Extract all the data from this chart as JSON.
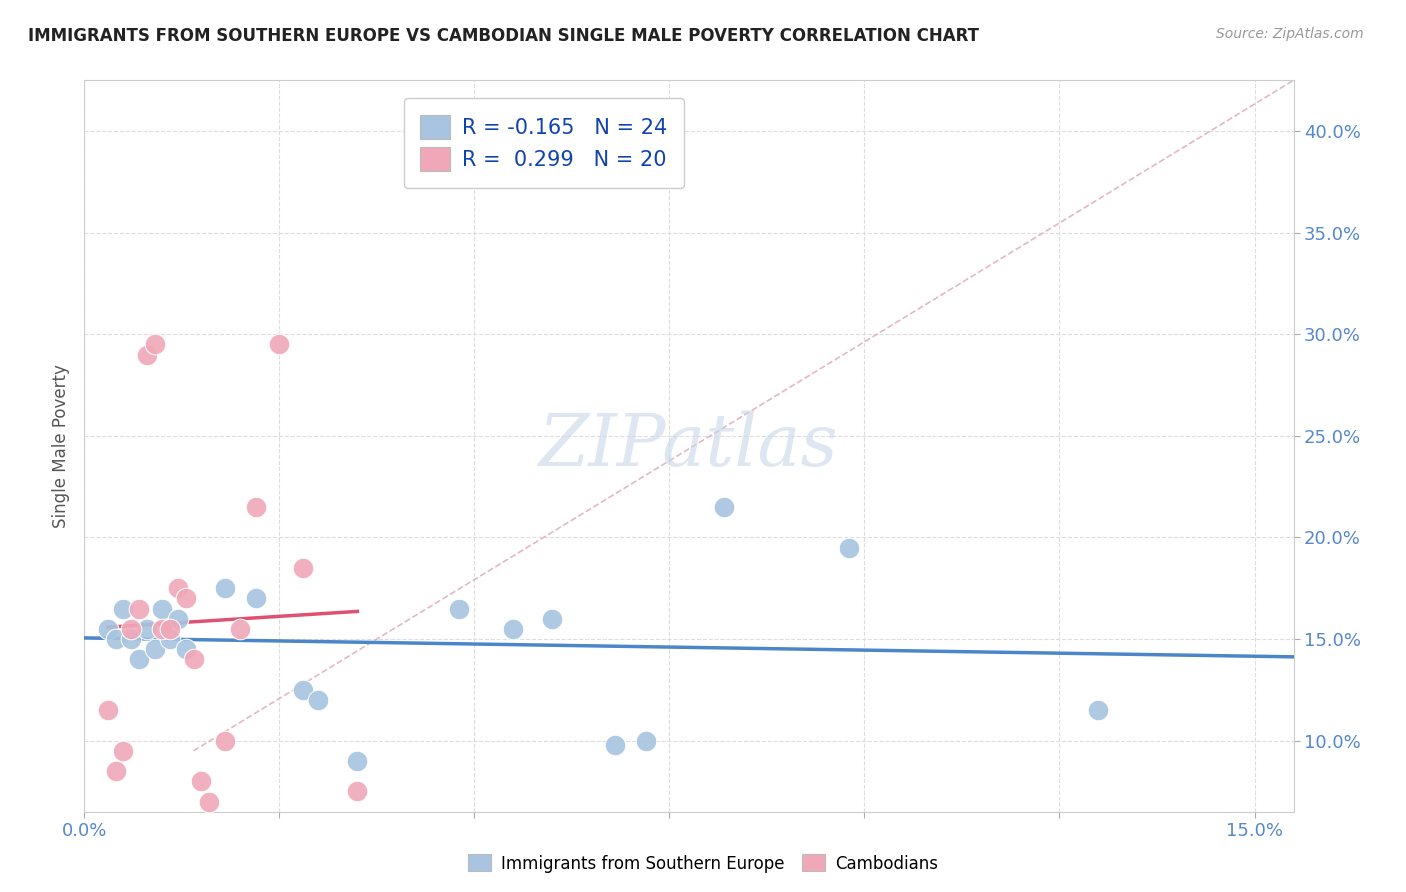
{
  "title": "IMMIGRANTS FROM SOUTHERN EUROPE VS CAMBODIAN SINGLE MALE POVERTY CORRELATION CHART",
  "source": "Source: ZipAtlas.com",
  "ylabel": "Single Male Poverty",
  "xlim": [
    0.0,
    0.155
  ],
  "ylim": [
    0.065,
    0.425
  ],
  "xticks": [
    0.0,
    0.025,
    0.05,
    0.075,
    0.1,
    0.125,
    0.15
  ],
  "xtick_labels": [
    "0.0%",
    "",
    "",
    "",
    "",
    "",
    "15.0%"
  ],
  "ytick_labels": [
    "10.0%",
    "15.0%",
    "20.0%",
    "25.0%",
    "30.0%",
    "35.0%",
    "40.0%"
  ],
  "yticks": [
    0.1,
    0.15,
    0.2,
    0.25,
    0.3,
    0.35,
    0.4
  ],
  "legend1_label": "R = -0.165   N = 24",
  "legend2_label": "R =  0.299   N = 20",
  "blue_color": "#A8C4E0",
  "pink_color": "#F0A8B8",
  "blue_line_color": "#4A86C8",
  "pink_line_color": "#E05070",
  "diag_color": "#E0B0C0",
  "grid_color": "#DDDDDD",
  "background_color": "#FFFFFF",
  "blue_scatter_x": [
    0.003,
    0.004,
    0.005,
    0.006,
    0.007,
    0.008,
    0.009,
    0.01,
    0.011,
    0.012,
    0.013,
    0.018,
    0.022,
    0.028,
    0.03,
    0.035,
    0.048,
    0.055,
    0.06,
    0.068,
    0.072,
    0.082,
    0.098,
    0.13
  ],
  "blue_scatter_y": [
    0.155,
    0.15,
    0.165,
    0.15,
    0.14,
    0.155,
    0.145,
    0.165,
    0.15,
    0.16,
    0.145,
    0.175,
    0.17,
    0.125,
    0.12,
    0.09,
    0.165,
    0.155,
    0.16,
    0.098,
    0.1,
    0.215,
    0.195,
    0.115
  ],
  "pink_scatter_x": [
    0.003,
    0.004,
    0.005,
    0.006,
    0.007,
    0.008,
    0.009,
    0.01,
    0.011,
    0.012,
    0.013,
    0.014,
    0.015,
    0.016,
    0.018,
    0.02,
    0.022,
    0.025,
    0.028,
    0.035
  ],
  "pink_scatter_y": [
    0.115,
    0.085,
    0.095,
    0.155,
    0.165,
    0.29,
    0.295,
    0.155,
    0.155,
    0.175,
    0.17,
    0.14,
    0.08,
    0.07,
    0.1,
    0.155,
    0.215,
    0.295,
    0.185,
    0.075
  ]
}
